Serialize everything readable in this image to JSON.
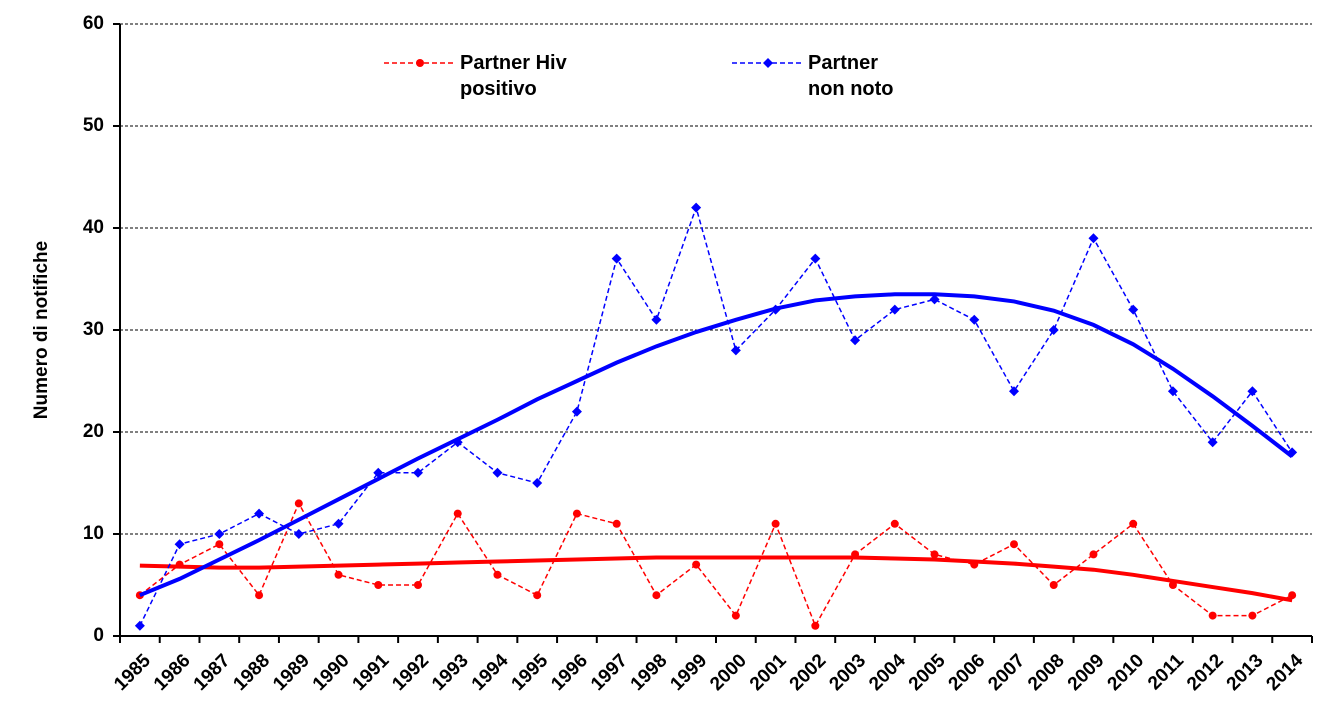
{
  "chart_data": {
    "type": "line",
    "y_label": "Numero di notifiche",
    "categories": [
      "1985",
      "1986",
      "1987",
      "1988",
      "1989",
      "1990",
      "1991",
      "1992",
      "1993",
      "1994",
      "1995",
      "1996",
      "1997",
      "1998",
      "1999",
      "2000",
      "2001",
      "2002",
      "2003",
      "2004",
      "2005",
      "2006",
      "2007",
      "2008",
      "2009",
      "2010",
      "2011",
      "2012",
      "2013",
      "2014"
    ],
    "series": [
      {
        "name": "Partner Hiv positivo",
        "color": "#ff0000",
        "marker": "circle",
        "values": [
          4,
          7,
          9,
          4,
          13,
          6,
          5,
          5,
          12,
          6,
          4,
          12,
          11,
          4,
          7,
          2,
          11,
          1,
          8,
          11,
          8,
          7,
          9,
          5,
          8,
          11,
          5,
          2,
          2,
          4
        ],
        "trend": [
          6.9,
          6.8,
          6.7,
          6.7,
          6.8,
          6.9,
          7.0,
          7.1,
          7.2,
          7.3,
          7.4,
          7.5,
          7.6,
          7.7,
          7.7,
          7.7,
          7.7,
          7.7,
          7.7,
          7.6,
          7.5,
          7.3,
          7.1,
          6.8,
          6.5,
          6.0,
          5.4,
          4.8,
          4.2,
          3.5
        ]
      },
      {
        "name": "Partner non noto",
        "color": "#0000ff",
        "marker": "diamond",
        "values": [
          1,
          9,
          10,
          12,
          10,
          11,
          16,
          16,
          19,
          16,
          15,
          22,
          37,
          31,
          42,
          28,
          32,
          37,
          29,
          32,
          33,
          31,
          24,
          30,
          39,
          32,
          24,
          19,
          24,
          18
        ],
        "trend": [
          4,
          5.6,
          7.5,
          9.4,
          11.4,
          13.4,
          15.4,
          17.4,
          19.3,
          21.2,
          23.2,
          25.0,
          26.8,
          28.4,
          29.8,
          31.0,
          32.1,
          32.9,
          33.3,
          33.5,
          33.5,
          33.3,
          32.8,
          31.9,
          30.5,
          28.6,
          26.2,
          23.5,
          20.6,
          17.6
        ]
      }
    ],
    "ylim": [
      0,
      60
    ],
    "yticks": [
      0,
      10,
      20,
      30,
      40,
      50,
      60
    ],
    "grid": true
  }
}
